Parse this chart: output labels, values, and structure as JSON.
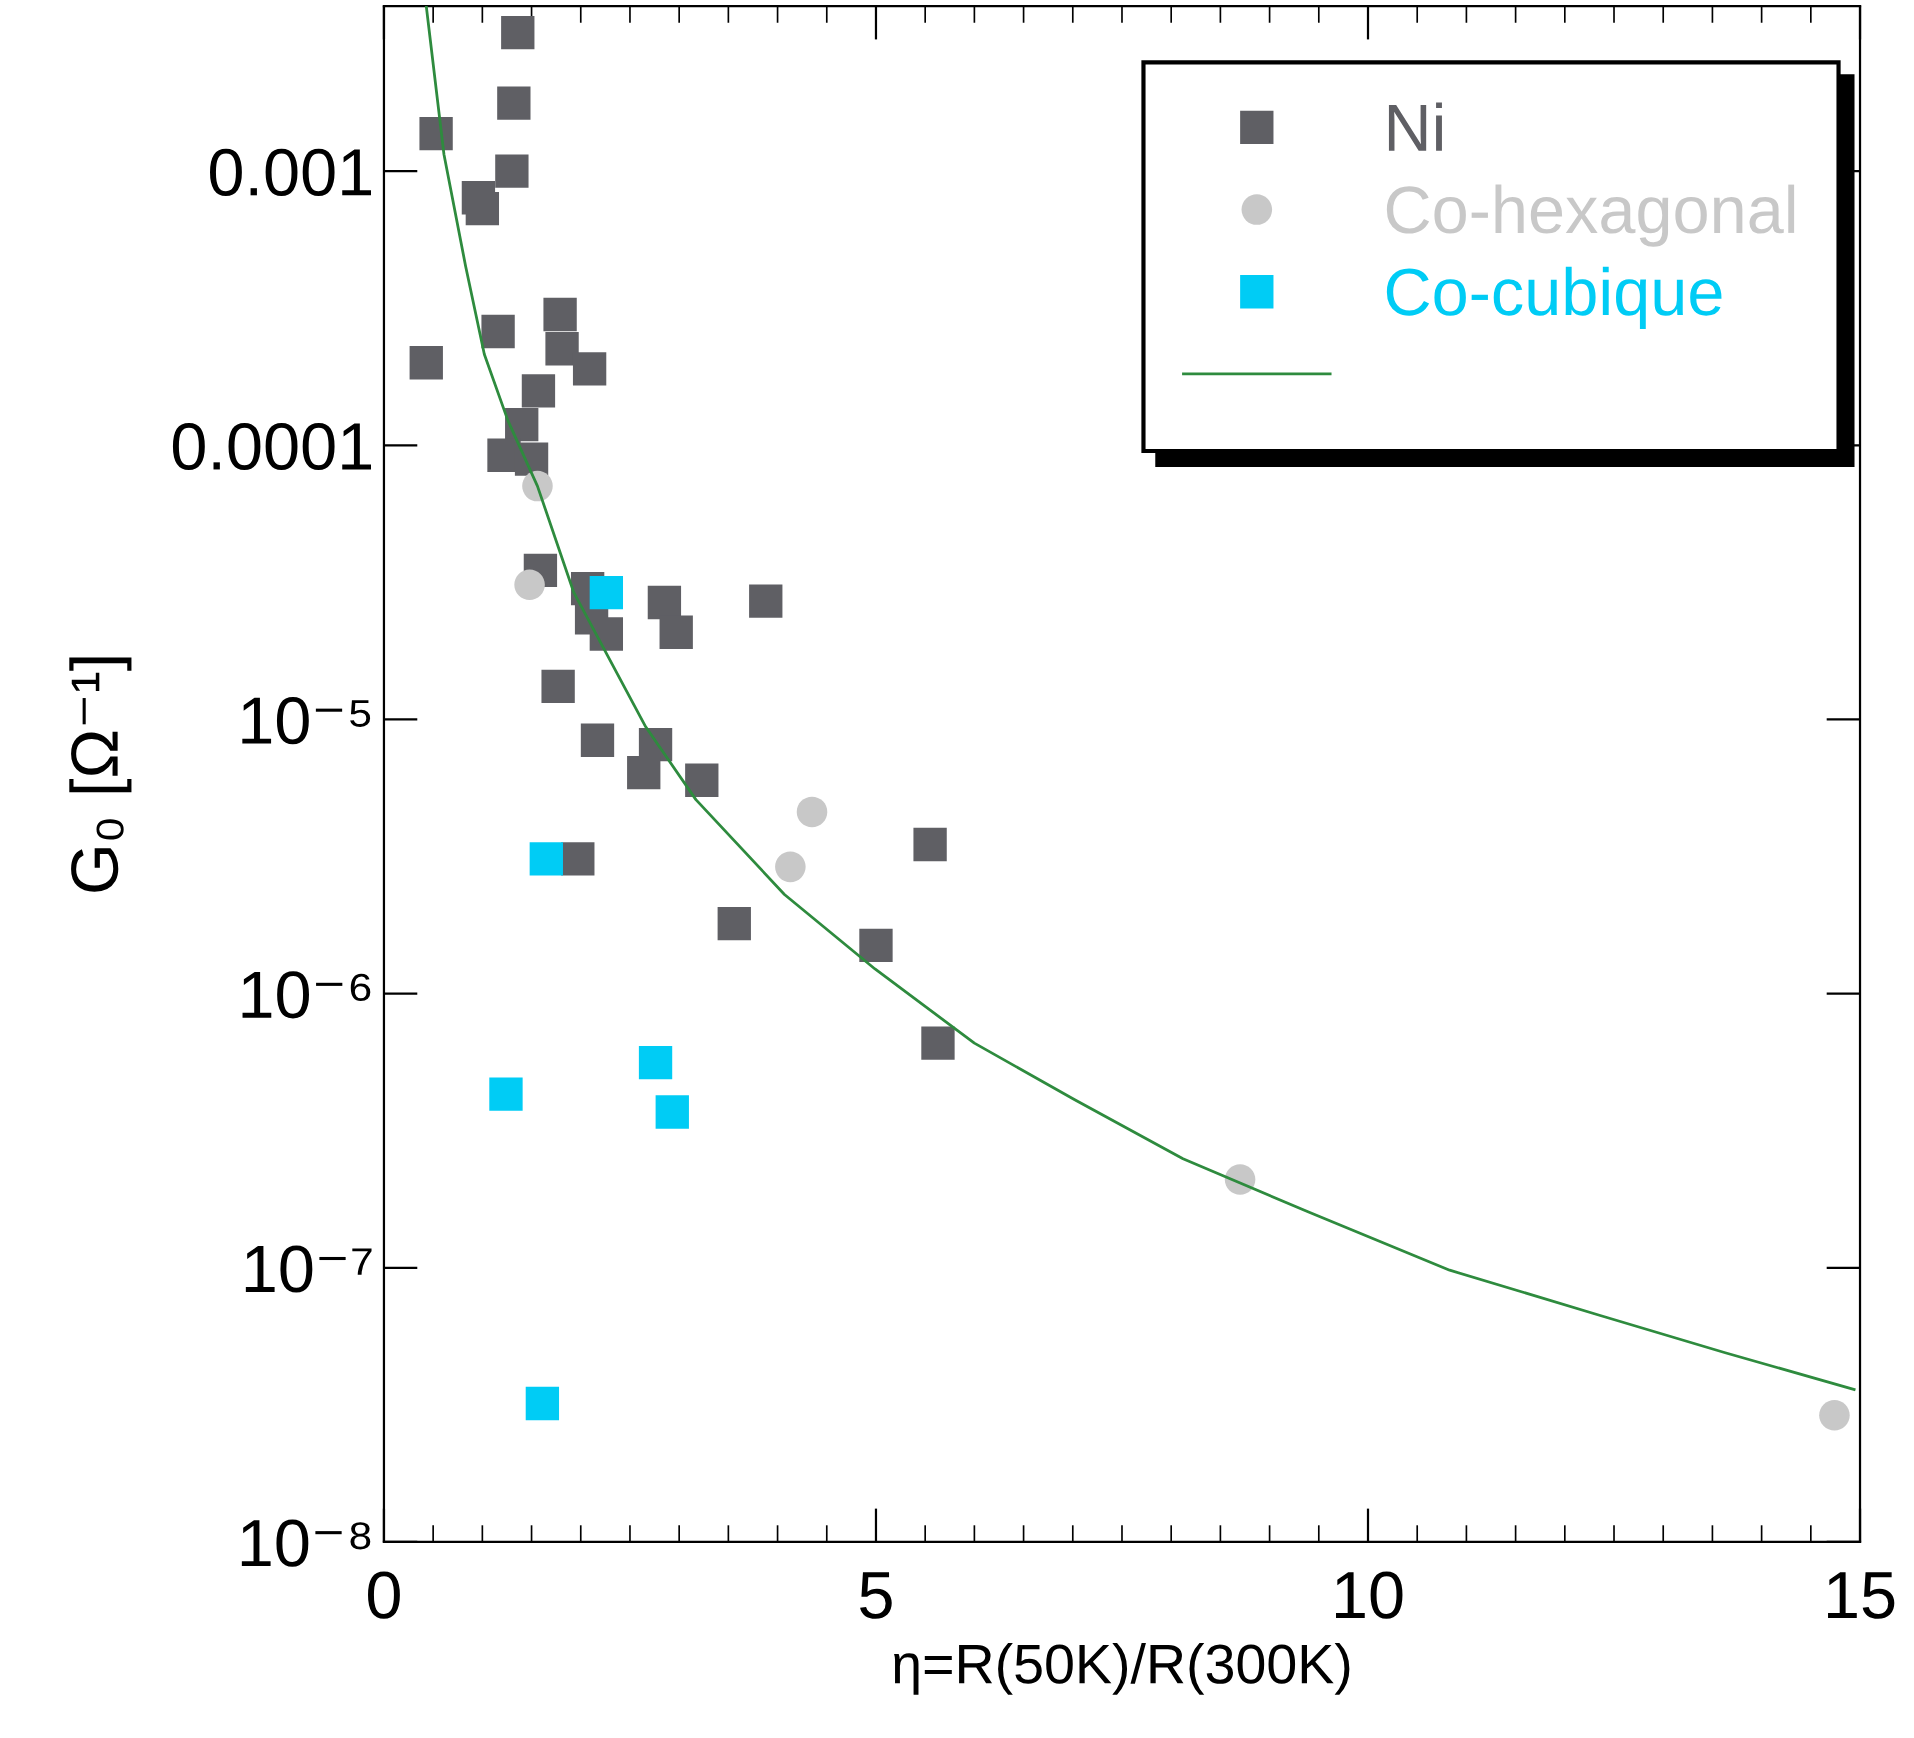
{
  "chart_data": {
    "type": "scatter",
    "xlabel": "η=R(50K)/R(300K)",
    "ylabel": "G₀ [Ω⁻¹]",
    "log": "y",
    "xlim": [
      0,
      15
    ],
    "xticks": [
      0,
      5,
      10,
      15
    ],
    "ylim": [
      1e-08,
      0.004
    ],
    "yticks": [
      {
        "value": 1e-08,
        "label": "10⁻⁸"
      },
      {
        "value": 1e-07,
        "label": "10⁻⁷"
      },
      {
        "value": 1e-06,
        "label": "10⁻⁶"
      },
      {
        "value": 1e-05,
        "label": "10⁻⁵"
      },
      {
        "value": 0.0001,
        "label": "0.0001"
      },
      {
        "value": 0.001,
        "label": "0.001"
      }
    ],
    "grid": false,
    "legend": "top",
    "series": [
      {
        "name": "Ni",
        "color": "#5f5f64",
        "marker": "square",
        "x": [
          1.36,
          1.32,
          0.53,
          1.3,
          0.96,
          1.0,
          0.43,
          1.16,
          1.79,
          1.81,
          2.09,
          1.57,
          1.4,
          1.22,
          1.5,
          1.59,
          2.07,
          2.11,
          2.26,
          2.85,
          2.97,
          3.88,
          1.77,
          2.17,
          2.76,
          2.64,
          3.23,
          1.97,
          5.55,
          3.56,
          5.0,
          5.63
        ],
        "values": [
          0.0032,
          0.00177,
          0.00137,
          0.001,
          0.0008,
          0.00073,
          0.0002,
          0.00026,
          0.0003,
          0.000225,
          0.00019,
          0.000158,
          0.000119,
          9.2e-05,
          8.9e-05,
          3.5e-05,
          3e-05,
          2.35e-05,
          2.05e-05,
          2.67e-05,
          2.08e-05,
          2.7e-05,
          1.32e-05,
          8.4e-06,
          8.1e-06,
          6.4e-06,
          6e-06,
          3.1e-06,
          3.5e-06,
          1.8e-06,
          1.5e-06,
          6.6e-07
        ]
      },
      {
        "name": "Co-hexagonal",
        "color": "#c8c8c8",
        "marker": "circle",
        "x": [
          1.56,
          1.48,
          4.35,
          4.13,
          8.7,
          14.74
        ],
        "values": [
          7.1e-05,
          3.1e-05,
          4.6e-06,
          2.9e-06,
          2.1e-07,
          2.9e-08
        ]
      },
      {
        "name": "Co-cubique",
        "color": "#00ccf5",
        "marker": "square",
        "x": [
          2.26,
          1.65,
          2.76,
          1.24,
          2.93,
          1.61
        ],
        "values": [
          2.9e-05,
          3.1e-06,
          5.6e-07,
          4.3e-07,
          3.7e-07,
          3.2e-08
        ]
      },
      {
        "type": "line",
        "color": "#2e8b3e",
        "line_style": "solid",
        "marker": "none",
        "x": [
          0.43,
          0.61,
          0.83,
          1.02,
          1.26,
          1.56,
          1.93,
          2.66,
          3.17,
          4.07,
          4.99,
          6.0,
          7.02,
          8.12,
          9.39,
          10.83,
          12.36,
          13.63,
          14.94
        ],
        "values": [
          0.004,
          0.00115,
          0.00045,
          0.000215,
          0.000123,
          7.1e-05,
          2.9e-05,
          9.4e-06,
          5.1e-06,
          2.3e-06,
          1.23e-06,
          6.6e-07,
          4.1e-07,
          2.5e-07,
          1.6e-07,
          9.8e-08,
          6.7e-08,
          4.9e-08,
          3.6e-08
        ]
      }
    ]
  }
}
